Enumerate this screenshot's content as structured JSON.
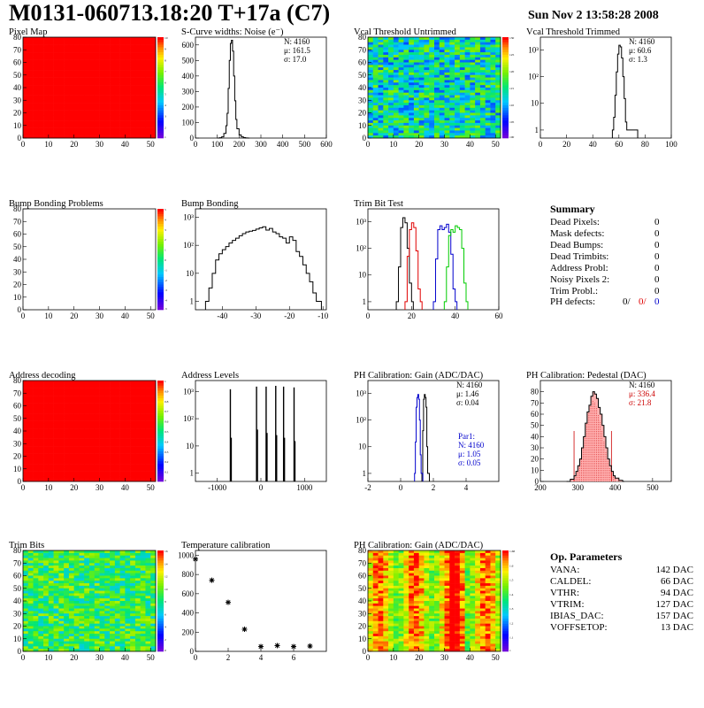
{
  "title": "M0131-060713.18:20 T+17a (C7)",
  "date": "Sun Nov  2 13:58:28 2008",
  "colors": {
    "hist_red": "#e00000",
    "hist_blue": "#0000cc",
    "hist_green": "#00cc00",
    "fill_red": "#ff0000"
  },
  "summary": {
    "heading": "Summary",
    "rows": [
      {
        "label": "Dead Pixels:",
        "value": "0"
      },
      {
        "label": "Mask defects:",
        "value": "0"
      },
      {
        "label": "Dead Bumps:",
        "value": "0"
      },
      {
        "label": "Dead Trimbits:",
        "value": "0"
      },
      {
        "label": "Address Probl:",
        "value": "0"
      },
      {
        "label": "Noisy Pixels 2:",
        "value": "0"
      },
      {
        "label": "Trim Probl.:",
        "value": "0"
      }
    ],
    "ph_label": "PH defects:",
    "ph_values": [
      "0/",
      "0/",
      "0"
    ]
  },
  "op_params": {
    "heading": "Op. Parameters",
    "rows": [
      {
        "label": "VANA:",
        "value": "142 DAC"
      },
      {
        "label": "CALDEL:",
        "value": "66 DAC"
      },
      {
        "label": "VTHR:",
        "value": "94 DAC"
      },
      {
        "label": "VTRIM:",
        "value": "127 DAC"
      },
      {
        "label": "IBIAS_DAC:",
        "value": "157 DAC"
      },
      {
        "label": "VOFFSETOP:",
        "value": "13 DAC"
      }
    ]
  },
  "chart_data": [
    {
      "id": "pixel-map",
      "type": "heatmap",
      "title": "Pixel Map",
      "xlim": [
        0,
        52
      ],
      "ylim": [
        0,
        80
      ],
      "xticks": [
        "0",
        "10",
        "20",
        "30",
        "40",
        "50"
      ],
      "yticks": [
        "0",
        "10",
        "20",
        "30",
        "40",
        "50",
        "60",
        "70",
        "80"
      ],
      "pattern": "uniform-max",
      "zmax": 10,
      "palette_labels": [
        "10",
        "9",
        "8",
        "7",
        "6",
        "5",
        "4",
        "3",
        "2",
        "1"
      ]
    },
    {
      "id": "noise",
      "type": "line",
      "title": "S-Curve widths: Noise (e⁻)",
      "xlim": [
        0,
        600
      ],
      "ylim": [
        0,
        650
      ],
      "log": false,
      "xticks": [
        "0",
        "100",
        "200",
        "300",
        "400",
        "500",
        "600"
      ],
      "yticks": [
        "0",
        "100",
        "200",
        "300",
        "400",
        "500",
        "600"
      ],
      "stats": [
        "N: 4160",
        "μ: 161.5",
        "σ: 17.0"
      ],
      "series": [
        {
          "color": "#000000",
          "x": [
            100,
            110,
            120,
            130,
            140,
            145,
            150,
            155,
            160,
            165,
            170,
            175,
            180,
            185,
            190,
            200,
            210,
            220,
            230,
            240
          ],
          "y": [
            0,
            2,
            8,
            30,
            80,
            160,
            320,
            500,
            610,
            630,
            560,
            400,
            240,
            120,
            60,
            20,
            8,
            3,
            1,
            0
          ]
        }
      ]
    },
    {
      "id": "vcal-untrimmed",
      "type": "heatmap",
      "title": "Vcal Threshold Untrimmed",
      "xlim": [
        0,
        52
      ],
      "ylim": [
        0,
        80
      ],
      "xticks": [
        "0",
        "10",
        "20",
        "30",
        "40",
        "50"
      ],
      "yticks": [
        "0",
        "10",
        "20",
        "30",
        "40",
        "50",
        "60",
        "70",
        "80"
      ],
      "pattern": "noise-green",
      "palette_labels": [
        "130",
        "125",
        "120",
        "115",
        "110",
        "105",
        "100"
      ]
    },
    {
      "id": "vcal-trimmed",
      "type": "line",
      "title": "Vcal Threshold Trimmed",
      "xlim": [
        0,
        100
      ],
      "log": true,
      "ylim": [
        0.5,
        3000
      ],
      "xticks": [
        "0",
        "20",
        "40",
        "60",
        "80",
        "100"
      ],
      "yticks": [
        "1",
        "10",
        "10²",
        "10³"
      ],
      "stats": [
        "N: 4160",
        "μ: 60.6",
        "σ:  1.3"
      ],
      "series": [
        {
          "color": "#000000",
          "x": [
            55,
            56,
            57,
            58,
            59,
            60,
            61,
            62,
            63,
            64,
            65,
            66,
            72,
            73
          ],
          "y": [
            1,
            3,
            20,
            150,
            700,
            1500,
            1300,
            500,
            100,
            15,
            2,
            1,
            1,
            1
          ]
        }
      ]
    },
    {
      "id": "bump-problems",
      "type": "heatmap",
      "title": "Bump Bonding Problems",
      "xlim": [
        0,
        52
      ],
      "ylim": [
        0,
        80
      ],
      "xticks": [
        "0",
        "10",
        "20",
        "30",
        "40",
        "50"
      ],
      "yticks": [
        "0",
        "10",
        "20",
        "30",
        "40",
        "50",
        "60",
        "70",
        "80"
      ],
      "pattern": "empty",
      "palette_labels": [
        "5",
        "4",
        "3",
        "2",
        "1",
        "0",
        "-1",
        "-2",
        "-3",
        "-4",
        "-5"
      ]
    },
    {
      "id": "bump-bonding",
      "type": "line",
      "title": "Bump Bonding",
      "xlim": [
        -48,
        -9
      ],
      "log": true,
      "ylim": [
        0.5,
        2000
      ],
      "xticks": [
        "-40",
        "-30",
        "-20",
        "-10"
      ],
      "yticks": [
        "1",
        "10",
        "10²",
        "10³"
      ],
      "series": [
        {
          "color": "#000000",
          "x": [
            -45,
            -44,
            -43,
            -42,
            -41,
            -40,
            -39,
            -38,
            -37,
            -36,
            -35,
            -34,
            -33,
            -32,
            -31,
            -30,
            -29,
            -28,
            -27,
            -26,
            -25,
            -24,
            -23,
            -22,
            -21,
            -20,
            -19,
            -18,
            -17,
            -16,
            -15,
            -14,
            -13,
            -12,
            -11
          ],
          "y": [
            1,
            3,
            10,
            30,
            50,
            70,
            90,
            120,
            150,
            180,
            220,
            260,
            300,
            320,
            340,
            380,
            420,
            460,
            350,
            400,
            300,
            260,
            200,
            180,
            120,
            200,
            150,
            60,
            40,
            20,
            10,
            5,
            2,
            1,
            1
          ]
        }
      ]
    },
    {
      "id": "trim-bit",
      "type": "line",
      "title": "Trim Bit Test",
      "xlim": [
        0,
        60
      ],
      "log": true,
      "ylim": [
        0.5,
        3000
      ],
      "xticks": [
        "0",
        "20",
        "40",
        "60"
      ],
      "yticks": [
        "1",
        "10",
        "10²",
        "10³"
      ],
      "series": [
        {
          "color": "#000000",
          "x": [
            13,
            14,
            15,
            16,
            17,
            18,
            19,
            20
          ],
          "y": [
            1,
            20,
            600,
            1400,
            900,
            100,
            5,
            1
          ]
        },
        {
          "color": "#e00000",
          "x": [
            17,
            18,
            19,
            20,
            21,
            22,
            23,
            24
          ],
          "y": [
            1,
            50,
            500,
            900,
            600,
            80,
            3,
            1
          ]
        },
        {
          "color": "#0000cc",
          "x": [
            30,
            31,
            32,
            33,
            34,
            35,
            36,
            37,
            38,
            39,
            40
          ],
          "y": [
            1,
            40,
            500,
            700,
            500,
            600,
            800,
            400,
            60,
            3,
            1
          ]
        },
        {
          "color": "#00cc00",
          "x": [
            35,
            36,
            37,
            38,
            39,
            40,
            41,
            42,
            43,
            44,
            45
          ],
          "y": [
            1,
            20,
            300,
            500,
            400,
            700,
            600,
            500,
            100,
            5,
            1
          ]
        }
      ]
    },
    {
      "id": "address-decoding",
      "type": "heatmap",
      "title": "Address decoding",
      "xlim": [
        0,
        52
      ],
      "ylim": [
        0,
        80
      ],
      "xticks": [
        "0",
        "10",
        "20",
        "30",
        "40",
        "50"
      ],
      "yticks": [
        "0",
        "10",
        "20",
        "30",
        "40",
        "50",
        "60",
        "70",
        "80"
      ],
      "pattern": "uniform-max",
      "palette_labels": [
        "1",
        "0.9",
        "0.8",
        "0.7",
        "0.6",
        "0.5",
        "0.4",
        "0.3",
        "0.2",
        "0.1",
        "0"
      ]
    },
    {
      "id": "address-levels",
      "type": "bar",
      "title": "Address Levels",
      "xlim": [
        -1500,
        1500
      ],
      "log": true,
      "ylim": [
        0.5,
        2500
      ],
      "xticks": [
        "-1000",
        "0",
        "1000"
      ],
      "yticks": [
        "1",
        "10",
        "10²",
        "10³"
      ],
      "series": [
        {
          "color": "#000000",
          "x": [
            -700,
            -680,
            -100,
            -80,
            120,
            140,
            340,
            360,
            520,
            540,
            760,
            780
          ],
          "y": [
            1200,
            20,
            1500,
            40,
            1500,
            30,
            1600,
            25,
            1500,
            20,
            1400,
            15
          ]
        }
      ]
    },
    {
      "id": "ph-gain",
      "type": "line",
      "title": "PH Calibration: Gain (ADC/DAC)",
      "xlim": [
        -2,
        6
      ],
      "log": true,
      "ylim": [
        0.5,
        3000
      ],
      "xticks": [
        "-2",
        "0",
        "2",
        "4"
      ],
      "yticks": [
        "1",
        "10",
        "10²",
        "10³"
      ],
      "stats": [
        "N: 4160",
        "μ: 1.46",
        "σ: 0.04"
      ],
      "stats2": [
        "Par1:",
        "N: 4160",
        "μ: 1.05",
        "σ: 0.05"
      ],
      "series": [
        {
          "color": "#000000",
          "x": [
            1.3,
            1.35,
            1.4,
            1.45,
            1.5,
            1.55,
            1.6,
            1.65
          ],
          "y": [
            1,
            40,
            600,
            900,
            700,
            300,
            10,
            1
          ]
        },
        {
          "color": "#0000cc",
          "x": [
            0.85,
            0.9,
            0.95,
            1.0,
            1.05,
            1.1,
            1.15,
            1.2,
            1.25
          ],
          "y": [
            1,
            15,
            300,
            700,
            900,
            600,
            100,
            5,
            1
          ]
        }
      ]
    },
    {
      "id": "ph-pedestal",
      "type": "area",
      "title": "PH Calibration: Pedestal (DAC)",
      "xlim": [
        200,
        550
      ],
      "ylim": [
        0,
        90
      ],
      "log": false,
      "xticks": [
        "200",
        "300",
        "400",
        "500"
      ],
      "yticks": [
        "0",
        "10",
        "20",
        "30",
        "40",
        "50",
        "60",
        "70",
        "80"
      ],
      "stats": [
        "N: 4160",
        "μ: 336.4",
        "σ: 21.8"
      ],
      "series": [
        {
          "color": "#000000",
          "x": [
            270,
            280,
            290,
            295,
            300,
            305,
            310,
            315,
            320,
            325,
            330,
            335,
            340,
            345,
            350,
            355,
            360,
            365,
            370,
            375,
            380,
            385,
            390,
            395,
            400,
            410,
            420
          ],
          "y": [
            0,
            2,
            5,
            9,
            14,
            20,
            30,
            40,
            52,
            62,
            68,
            76,
            80,
            78,
            74,
            66,
            60,
            50,
            40,
            30,
            20,
            14,
            9,
            5,
            3,
            1,
            0
          ]
        }
      ]
    },
    {
      "id": "trim-bits",
      "type": "heatmap",
      "title": "Trim Bits",
      "xlim": [
        0,
        52
      ],
      "ylim": [
        0,
        80
      ],
      "xticks": [
        "0",
        "10",
        "20",
        "30",
        "40",
        "50"
      ],
      "yticks": [
        "0",
        "10",
        "20",
        "30",
        "40",
        "50",
        "60",
        "70",
        "80"
      ],
      "pattern": "noise-green2",
      "palette_labels": [
        "16",
        "14",
        "12",
        "10",
        "8",
        "6",
        "4",
        "2",
        "0"
      ]
    },
    {
      "id": "temperature",
      "type": "scatter",
      "title": "Temperature calibration",
      "xlim": [
        0,
        8
      ],
      "ylim": [
        0,
        1050
      ],
      "log": false,
      "xticks": [
        "0",
        "2",
        "4",
        "6"
      ],
      "yticks": [
        "0",
        "200",
        "400",
        "600",
        "800",
        "1000"
      ],
      "series": [
        {
          "color": "#000000",
          "x": [
            0,
            1,
            2,
            3,
            4,
            5,
            6,
            7
          ],
          "y": [
            960,
            740,
            510,
            230,
            50,
            60,
            50,
            55
          ]
        }
      ]
    },
    {
      "id": "ph-gain-map",
      "type": "heatmap",
      "title": "PH Calibration: Gain (ADC/DAC)",
      "xlim": [
        0,
        52
      ],
      "ylim": [
        0,
        80
      ],
      "xticks": [
        "0",
        "10",
        "20",
        "30",
        "40",
        "50"
      ],
      "yticks": [
        "0",
        "10",
        "20",
        "30",
        "40",
        "50",
        "60",
        "70",
        "80"
      ],
      "pattern": "gain",
      "palette_labels": [
        "1.68",
        "1.6",
        "1.5",
        "1.4",
        "1.3",
        "1.2",
        "1.1",
        "1"
      ]
    }
  ]
}
